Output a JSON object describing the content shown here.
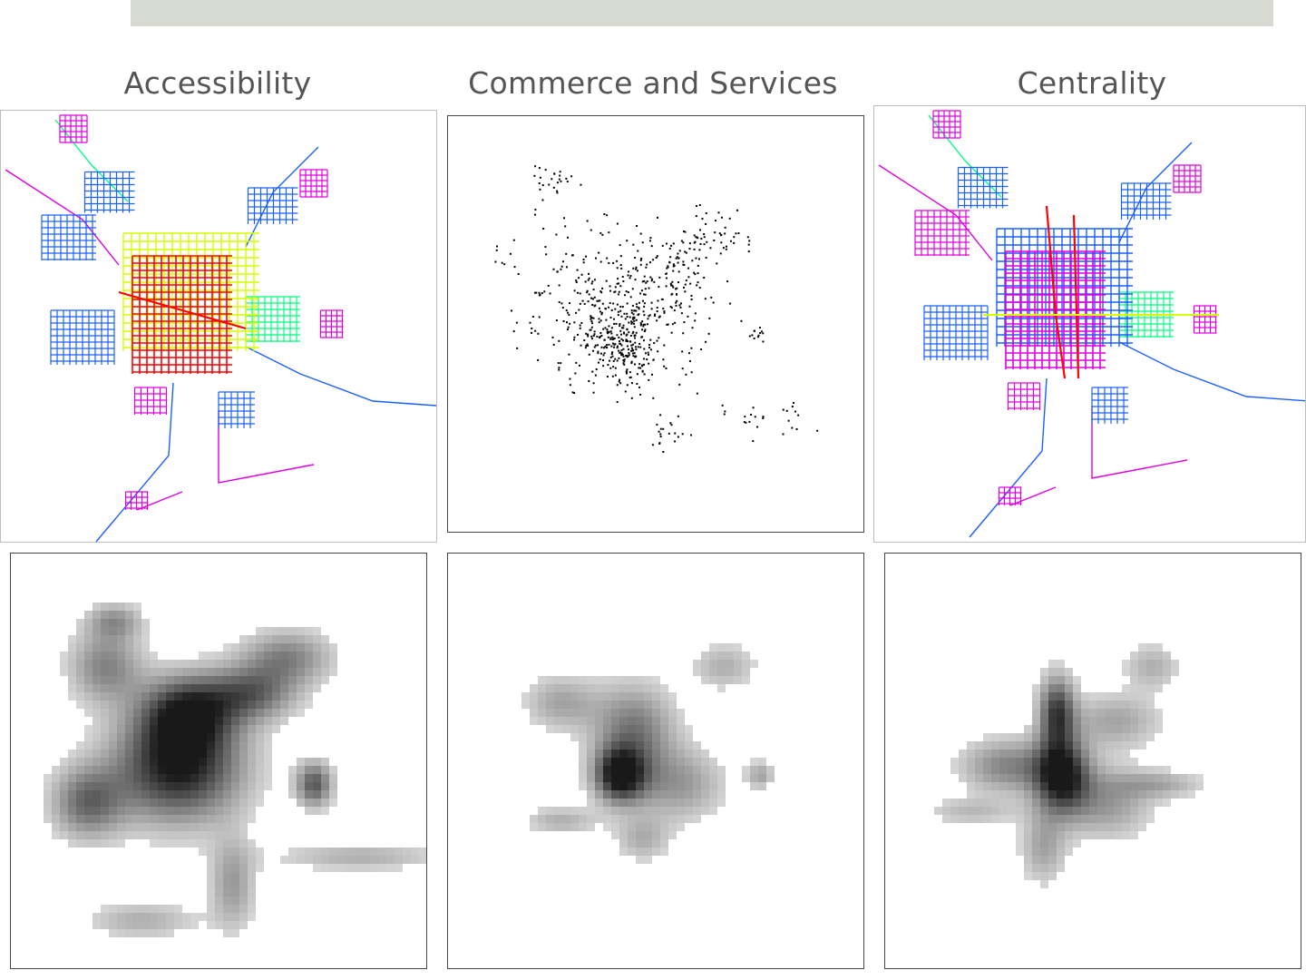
{
  "header": {
    "band_color": "#d7dad1"
  },
  "titles": {
    "accessibility": "Accessibility",
    "commerce": "Commerce and Services",
    "centrality": "Centrality"
  },
  "colors": {
    "class_1": "#ff0000",
    "class_2": "#d4ff00",
    "class_3": "#00ff80",
    "class_4": "#1a5fff",
    "class_5": "#e000e0",
    "points": "#000000"
  },
  "maps": {
    "accessibility_network": {
      "highest_value_color": "red",
      "lowest_value_color": "magenta"
    },
    "commerce_points": {
      "symbol": "dot"
    },
    "centrality_network": {
      "highest_value_color": "red",
      "lowest_value_color": "magenta"
    },
    "accessibility_density": {
      "ramp": "grayscale"
    },
    "commerce_density": {
      "ramp": "grayscale"
    },
    "centrality_density": {
      "ramp": "grayscale"
    }
  }
}
